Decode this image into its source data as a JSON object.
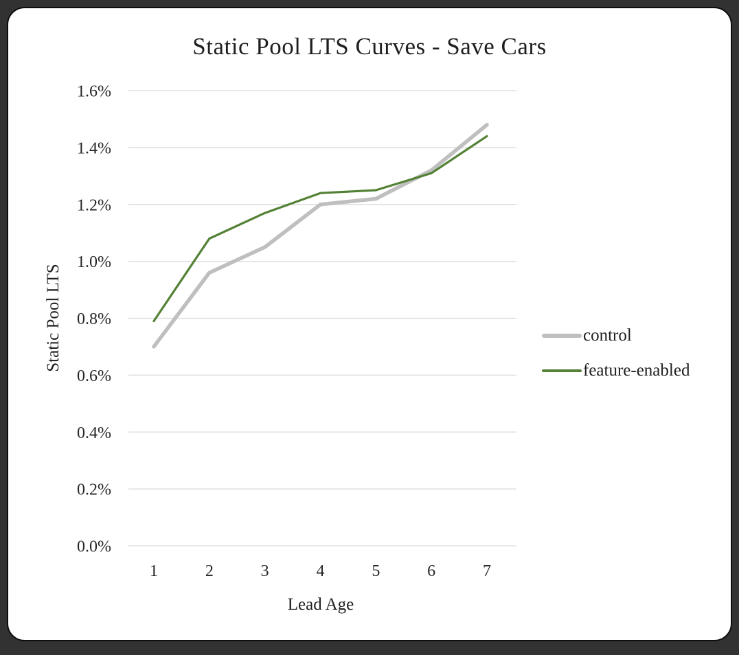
{
  "chart_data": {
    "type": "line",
    "title": "Static Pool LTS Curves - Save Cars",
    "xlabel": "Lead Age",
    "ylabel": "Static Pool LTS",
    "categories": [
      "1",
      "2",
      "3",
      "4",
      "5",
      "6",
      "7"
    ],
    "series": [
      {
        "name": "control",
        "color": "#bfbfbf",
        "stroke_width": 5.5,
        "values": [
          0.7,
          0.96,
          1.05,
          1.2,
          1.22,
          1.32,
          1.48
        ]
      },
      {
        "name": "feature-enabled",
        "color": "#538135",
        "stroke_width": 3.2,
        "values": [
          0.79,
          1.08,
          1.17,
          1.24,
          1.25,
          1.31,
          1.44
        ]
      }
    ],
    "ylim": [
      0.0,
      1.6
    ],
    "ytick_step": 0.2,
    "ytick_labels": [
      "0.0%",
      "0.2%",
      "0.4%",
      "0.6%",
      "0.8%",
      "1.0%",
      "1.2%",
      "1.4%",
      "1.6%"
    ],
    "yvalue_unit": "percent",
    "grid": true,
    "gridline_color": "#d9d9d9",
    "text_color": "#262626",
    "legend_position": "right"
  }
}
